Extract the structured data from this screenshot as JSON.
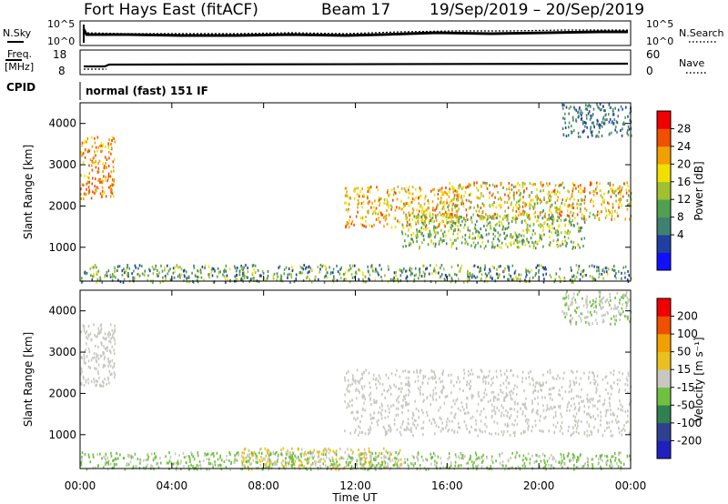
{
  "header": {
    "station": "Fort Hays East (fitACF)",
    "beam": "Beam 17",
    "dates": "19/Sep/2019 – 20/Sep/2019"
  },
  "noise_panel": {
    "left_label": "N.Sky",
    "right_label": "N.Search",
    "left_ticks": [
      "10^5",
      "10^0"
    ],
    "right_ticks": [
      "10^5",
      "10^0"
    ]
  },
  "freq_panel": {
    "left_label_line1": "Freq.",
    "left_label_line2": "[MHz]",
    "right_label": "Nave",
    "left_ticks": [
      "18",
      "8"
    ],
    "right_ticks": [
      "60",
      "0"
    ]
  },
  "cpid": {
    "label": "CPID",
    "value": "normal (fast) 151 IF"
  },
  "power_colorbar": {
    "label": "Power [dB]",
    "ticks": [
      "28",
      "24",
      "20",
      "16",
      "12",
      "8",
      "4"
    ],
    "colors": [
      "#1010ff",
      "#2040a0",
      "#408070",
      "#50a050",
      "#a0c030",
      "#f0e000",
      "#f0a000",
      "#f05000",
      "#f00000"
    ]
  },
  "velocity_colorbar": {
    "label": "Velocity [m s⁻¹]",
    "ticks": [
      "200",
      "100",
      "50",
      "15",
      "-15",
      "-50",
      "-100",
      "-200"
    ],
    "colors": [
      "#2020c0",
      "#304090",
      "#308050",
      "#70c040",
      "#c8c8c0",
      "#e8c020",
      "#f0a000",
      "#f05000",
      "#f00000"
    ]
  },
  "axes": {
    "ylabel": "Slant Range [km]",
    "xlabel": "Time UT",
    "y_ticks": [
      "1000",
      "2000",
      "3000",
      "4000"
    ],
    "x_ticks": [
      "00:00",
      "04:00",
      "08:00",
      "12:00",
      "16:00",
      "20:00",
      "00:00"
    ]
  },
  "chart_data": [
    {
      "type": "heatmap",
      "title": "",
      "quantity": "Power [dB]",
      "xlabel": "",
      "ylabel": "Slant Range [km]",
      "xlim": [
        0,
        24
      ],
      "ylim": [
        180,
        4500
      ],
      "color_range": [
        0,
        32
      ],
      "x_unit": "hours UT",
      "echo_regions": [
        {
          "x": [
            0.0,
            1.5
          ],
          "y": [
            2200,
            3700
          ],
          "power_db": [
            20,
            28
          ]
        },
        {
          "x": [
            11.5,
            16.5
          ],
          "y": [
            1500,
            2500
          ],
          "power_db": [
            16,
            28
          ]
        },
        {
          "x": [
            14.0,
            22.0
          ],
          "y": [
            1000,
            1800
          ],
          "power_db": [
            8,
            20
          ]
        },
        {
          "x": [
            16.0,
            24.0
          ],
          "y": [
            1700,
            2600
          ],
          "power_db": [
            12,
            28
          ]
        },
        {
          "x": [
            21.0,
            24.0
          ],
          "y": [
            3700,
            4500
          ],
          "power_db": [
            4,
            12
          ]
        },
        {
          "x": [
            0.0,
            24.0
          ],
          "y": [
            180,
            600
          ],
          "power_db": [
            4,
            20
          ]
        }
      ]
    },
    {
      "type": "heatmap",
      "title": "",
      "quantity": "Velocity [m s⁻¹]",
      "xlabel": "Time UT",
      "ylabel": "Slant Range [km]",
      "xlim": [
        0,
        24
      ],
      "ylim": [
        180,
        4500
      ],
      "color_range": [
        -250,
        250
      ],
      "x_unit": "hours UT",
      "echo_regions": [
        {
          "x": [
            0.0,
            1.5
          ],
          "y": [
            2200,
            3700
          ],
          "velocity": [
            -15,
            15
          ]
        },
        {
          "x": [
            11.5,
            24.0
          ],
          "y": [
            1000,
            2600
          ],
          "velocity": [
            -15,
            15
          ]
        },
        {
          "x": [
            21.0,
            24.0
          ],
          "y": [
            3700,
            4500
          ],
          "velocity": [
            -50,
            15
          ]
        },
        {
          "x": [
            7.0,
            14.0
          ],
          "y": [
            180,
            700
          ],
          "velocity": [
            15,
            50
          ]
        },
        {
          "x": [
            0.0,
            24.0
          ],
          "y": [
            180,
            600
          ],
          "velocity": [
            -50,
            -15
          ]
        }
      ]
    }
  ]
}
